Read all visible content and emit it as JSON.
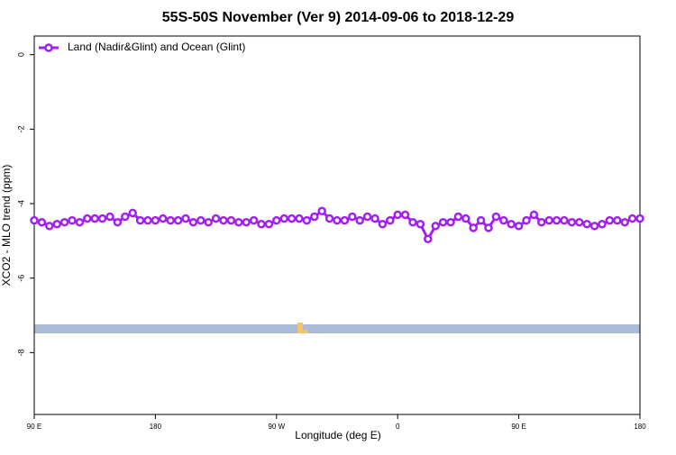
{
  "chart_data": {
    "type": "line",
    "title": "55S-50S November (Ver 9)   2014-09-06 to 2018-12-29",
    "x_label": "Longitude (deg E)",
    "y_label": "XCO2 - MLO trend (ppm)",
    "x": [
      90,
      95.625,
      101.25,
      106.875,
      112.5,
      118.125,
      123.75,
      129.375,
      135,
      140.625,
      146.25,
      151.875,
      157.5,
      163.125,
      168.75,
      174.375,
      180,
      185.625,
      191.25,
      196.875,
      202.5,
      208.125,
      213.75,
      219.375,
      225,
      230.625,
      236.25,
      241.875,
      247.5,
      253.125,
      258.75,
      264.375,
      270,
      275.625,
      281.25,
      286.875,
      292.5,
      298.125,
      303.75,
      309.375,
      315,
      320.625,
      326.25,
      331.875,
      337.5,
      343.125,
      348.75,
      354.375,
      360,
      365.625,
      371.25,
      376.875,
      382.5,
      388.125,
      393.75,
      399.375,
      405,
      410.625,
      416.25,
      421.875,
      427.5,
      433.125,
      438.75,
      444.375,
      450,
      455.625,
      461.25,
      466.875,
      472.5,
      478.125,
      483.75,
      489.375,
      495,
      500.625,
      506.25,
      511.875,
      517.5,
      523.125,
      528.75,
      534.375,
      540
    ],
    "series": [
      {
        "name": "Land (Nadir&Glint) and Ocean (Glint)",
        "color": "#a020f0",
        "values": [
          -4.45,
          -4.5,
          -4.6,
          -4.55,
          -4.5,
          -4.45,
          -4.5,
          -4.4,
          -4.4,
          -4.4,
          -4.35,
          -4.5,
          -4.35,
          -4.25,
          -4.45,
          -4.45,
          -4.45,
          -4.4,
          -4.45,
          -4.45,
          -4.4,
          -4.5,
          -4.45,
          -4.5,
          -4.4,
          -4.45,
          -4.45,
          -4.5,
          -4.5,
          -4.45,
          -4.55,
          -4.55,
          -4.45,
          -4.4,
          -4.4,
          -4.4,
          -4.45,
          -4.35,
          -4.2,
          -4.4,
          -4.45,
          -4.45,
          -4.35,
          -4.45,
          -4.35,
          -4.4,
          -4.55,
          -4.45,
          -4.3,
          -4.3,
          -4.5,
          -4.55,
          -4.95,
          -4.6,
          -4.5,
          -4.5,
          -4.35,
          -4.4,
          -4.65,
          -4.45,
          -4.65,
          -4.35,
          -4.45,
          -4.55,
          -4.6,
          -4.45,
          -4.3,
          -4.5,
          -4.45,
          -4.45,
          -4.45,
          -4.5,
          -4.5,
          -4.55,
          -4.6,
          -4.55,
          -4.45,
          -4.45,
          -4.5,
          -4.4,
          -4.4
        ]
      }
    ],
    "xlim": [
      90,
      540
    ],
    "xticks": [
      {
        "value": 90,
        "label": "90 E"
      },
      180,
      {
        "value": 270,
        "label": "90 W"
      },
      {
        "value": 360,
        "label": "0"
      },
      {
        "value": 450,
        "label": "90 E"
      },
      {
        "value": 540,
        "label": "180"
      }
    ],
    "ylim": [
      -9.66,
      0.5
    ],
    "yticks": [
      0,
      -2,
      -4,
      -6,
      -8
    ],
    "legend": "top-left"
  }
}
